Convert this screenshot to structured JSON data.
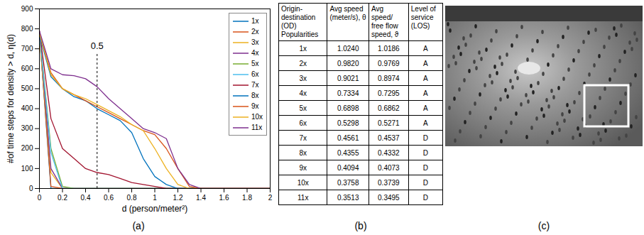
{
  "chart_data": {
    "type": "line",
    "xlabel": "d (person/meter²)",
    "ylabel": "#of time steps for density > d, η(d)",
    "x": [
      0,
      0.1,
      0.2,
      0.3,
      0.4,
      0.5,
      0.6,
      0.7,
      0.8,
      0.9,
      1,
      1.1,
      1.2,
      1.3,
      1.4,
      1.5,
      1.6,
      1.7,
      1.8,
      1.9,
      2
    ],
    "series": [
      {
        "name": "1x",
        "color": "#0072BD",
        "values": [
          780,
          0,
          0,
          0,
          0,
          0,
          0,
          0,
          0,
          0,
          0,
          0,
          0,
          0,
          0,
          0,
          0,
          0,
          0,
          0,
          0
        ]
      },
      {
        "name": "2x",
        "color": "#D95319",
        "values": [
          780,
          10,
          0,
          0,
          0,
          0,
          0,
          0,
          0,
          0,
          0,
          0,
          0,
          0,
          0,
          0,
          0,
          0,
          0,
          0,
          0
        ]
      },
      {
        "name": "3x",
        "color": "#EDB120",
        "values": [
          760,
          80,
          0,
          0,
          0,
          0,
          0,
          0,
          0,
          0,
          0,
          0,
          0,
          0,
          0,
          0,
          0,
          0,
          0,
          0,
          0
        ]
      },
      {
        "name": "4x",
        "color": "#7E2F8E",
        "values": [
          790,
          100,
          0,
          0,
          0,
          0,
          0,
          0,
          0,
          0,
          0,
          0,
          0,
          0,
          0,
          0,
          0,
          0,
          0,
          0,
          0
        ]
      },
      {
        "name": "5x",
        "color": "#77AC30",
        "values": [
          780,
          200,
          10,
          0,
          0,
          0,
          0,
          0,
          0,
          0,
          0,
          0,
          0,
          0,
          0,
          0,
          0,
          0,
          0,
          0,
          0
        ]
      },
      {
        "name": "6x",
        "color": "#4DBEEE",
        "values": [
          780,
          180,
          0,
          0,
          0,
          0,
          0,
          0,
          0,
          0,
          0,
          0,
          0,
          0,
          0,
          0,
          0,
          0,
          0,
          0,
          0
        ]
      },
      {
        "name": "7x",
        "color": "#A2142F",
        "values": [
          790,
          350,
          200,
          150,
          100,
          80,
          70,
          50,
          30,
          20,
          10,
          0,
          0,
          0,
          0,
          0,
          0,
          0,
          0,
          0,
          0
        ]
      },
      {
        "name": "8x",
        "color": "#0072BD",
        "values": [
          770,
          560,
          500,
          460,
          440,
          400,
          370,
          340,
          280,
          150,
          60,
          20,
          0,
          0,
          0,
          0,
          0,
          0,
          0,
          0,
          0
        ]
      },
      {
        "name": "9x",
        "color": "#D95319",
        "values": [
          780,
          580,
          500,
          470,
          440,
          410,
          380,
          350,
          320,
          290,
          270,
          200,
          100,
          10,
          0,
          0,
          0,
          0,
          0,
          0,
          0
        ]
      },
      {
        "name": "10x",
        "color": "#EDB120",
        "values": [
          780,
          570,
          500,
          470,
          450,
          420,
          390,
          360,
          320,
          290,
          200,
          100,
          20,
          0,
          0,
          0,
          0,
          0,
          0,
          0,
          0
        ]
      },
      {
        "name": "11x",
        "color": "#7E2F8E",
        "values": [
          790,
          600,
          570,
          565,
          550,
          510,
          450,
          400,
          350,
          300,
          280,
          250,
          100,
          20,
          0,
          0,
          0,
          0,
          0,
          0,
          0
        ]
      }
    ],
    "xlim": [
      0,
      2
    ],
    "xticks": [
      0,
      0.2,
      0.4,
      0.6,
      0.8,
      1,
      1.2,
      1.4,
      1.6,
      1.8,
      2
    ],
    "ylim": [
      0,
      900
    ],
    "yticks": [
      0,
      100,
      200,
      300,
      400,
      500,
      600,
      700,
      800,
      900
    ],
    "legend": "upper right",
    "annotations": [
      {
        "x": 0.5,
        "y": 680,
        "text": "0.5"
      }
    ],
    "caption": "(a)"
  },
  "table": {
    "header": [
      "Origin-destination (OD) Popularities",
      "Avg speed (meter/s), θ",
      "Avg speed/ free flow speed, ϑ",
      "Level of service (LOS)"
    ],
    "rows": [
      [
        "1x",
        "1.0240",
        "1.0186",
        "A"
      ],
      [
        "2x",
        "0.9820",
        "0.9769",
        "A"
      ],
      [
        "3x",
        "0.9021",
        "0.8974",
        "A"
      ],
      [
        "4x",
        "0.7334",
        "0.7295",
        "A"
      ],
      [
        "5x",
        "0.6898",
        "0.6862",
        "A"
      ],
      [
        "6x",
        "0.5298",
        "0.5271",
        "A"
      ],
      [
        "7x",
        "0.4561",
        "0.4537",
        "D"
      ],
      [
        "8x",
        "0.4355",
        "0.4332",
        "D"
      ],
      [
        "9x",
        "0.4094",
        "0.4073",
        "D"
      ],
      [
        "10x",
        "0.3758",
        "0.3739",
        "D"
      ],
      [
        "11x",
        "0.3513",
        "0.3495",
        "D"
      ]
    ],
    "caption": "(b)"
  },
  "image": {
    "caption": "(c)"
  }
}
